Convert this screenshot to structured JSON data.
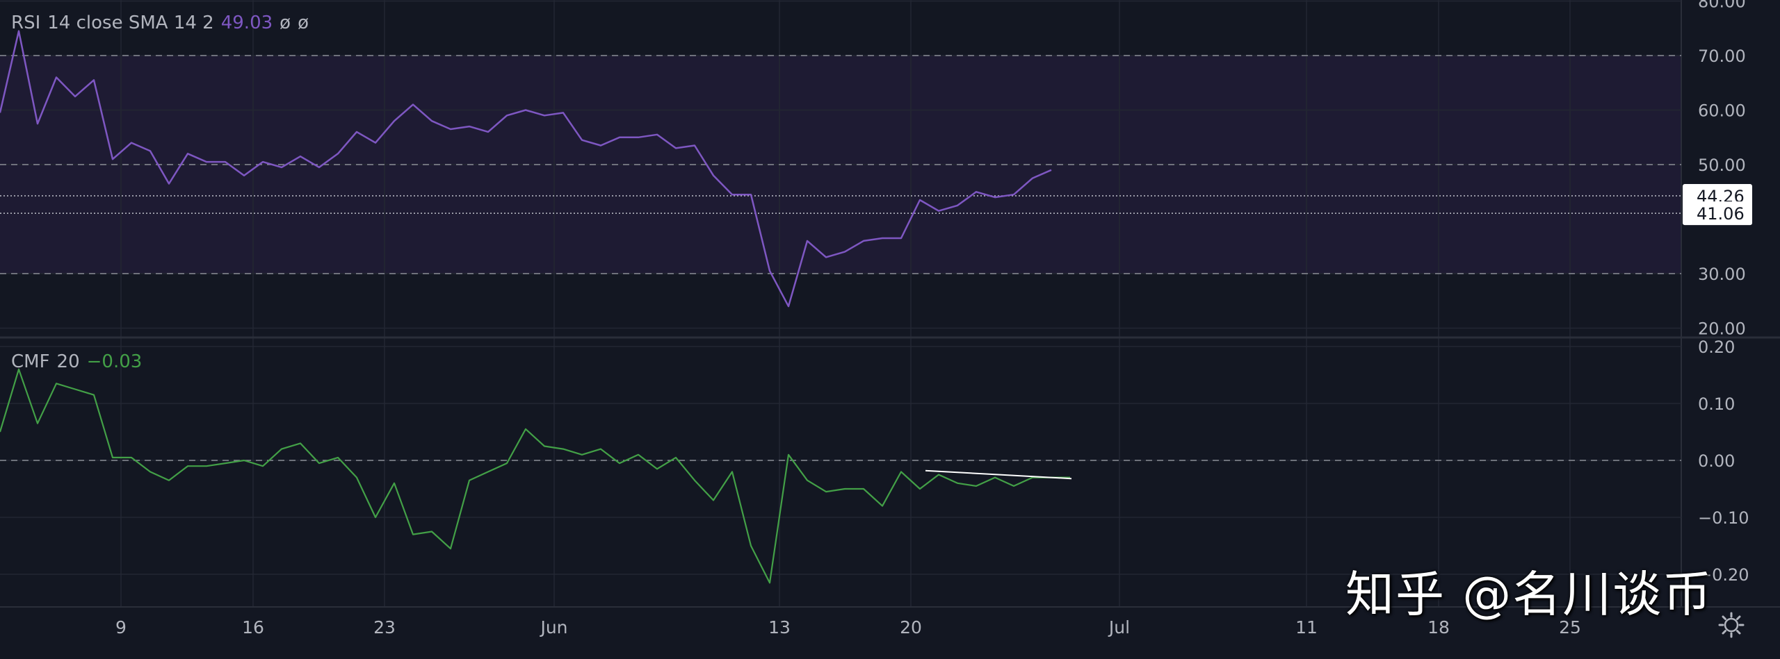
{
  "theme": {
    "background": "#131722",
    "grid": "#232733",
    "band": "#1e1b33",
    "rsi_color": "#7e57c2",
    "cmf_color": "#43a047",
    "text": "#b2b5be",
    "trendline": "#ffffff"
  },
  "rsi_legend": {
    "name": "RSI",
    "params": "14 close SMA 14 2",
    "value": "49.03",
    "na1": "ø",
    "na2": "ø"
  },
  "cmf_legend": {
    "name": "CMF",
    "params": "20",
    "value": "−0.03"
  },
  "price_labels": {
    "rsi_last_a": "44.26",
    "rsi_last_b": "41.06"
  },
  "time_axis": [
    "9",
    "16",
    "23",
    "Jun",
    "13",
    "20",
    "Jul",
    "11",
    "18",
    "25"
  ],
  "watermark": "知乎 @名川谈币",
  "chart_data": [
    {
      "type": "line",
      "title": "RSI 14 close SMA 14 2",
      "ylim": [
        20,
        80
      ],
      "y_ticks": [
        "80.00",
        "70.00",
        "60.00",
        "50.00",
        "30.00",
        "20.00"
      ],
      "bands": [
        70,
        30
      ],
      "dashed_levels": [
        70,
        50,
        30
      ],
      "dotted_levels": [
        44.26,
        41.06
      ],
      "grid": true,
      "series": [
        {
          "name": "RSI",
          "x": [
            0,
            1,
            2,
            3,
            4,
            5,
            6,
            7,
            8,
            9,
            10,
            11,
            12,
            13,
            14,
            15,
            16,
            17,
            18,
            19,
            20,
            21,
            22,
            23,
            24,
            25,
            26,
            27,
            28,
            29,
            30,
            31,
            32,
            33,
            34,
            35,
            36,
            37,
            38,
            39,
            40,
            41,
            42,
            43,
            44,
            45,
            46,
            47,
            48,
            49,
            50,
            51,
            52,
            53,
            54,
            55,
            56
          ],
          "values": [
            59.5,
            74.5,
            57.5,
            66,
            62.5,
            65.5,
            51,
            54,
            52.5,
            46.5,
            52,
            50.5,
            50.5,
            48,
            50.5,
            49.5,
            51.5,
            49.5,
            52,
            56,
            54,
            58,
            61,
            58,
            56.5,
            57,
            56,
            59,
            60,
            59,
            59.5,
            54.5,
            53.5,
            55,
            55,
            55.5,
            53,
            53.5,
            48,
            44.5,
            44.5,
            30.5,
            24,
            36,
            33,
            34,
            36,
            36.5,
            36.5,
            43.5,
            41.5,
            42.5,
            45,
            44,
            44.5,
            47.5,
            49
          ]
        }
      ]
    },
    {
      "type": "line",
      "title": "CMF 20",
      "ylim": [
        -0.255,
        0.2
      ],
      "y_ticks": [
        "0.20",
        "0.10",
        "0.00",
        "−0.10",
        "−0.20"
      ],
      "dashed_levels": [
        0
      ],
      "grid": true,
      "series": [
        {
          "name": "CMF",
          "x": [
            0,
            1,
            2,
            3,
            4,
            5,
            6,
            7,
            8,
            9,
            10,
            11,
            12,
            13,
            14,
            15,
            16,
            17,
            18,
            19,
            20,
            21,
            22,
            23,
            24,
            25,
            26,
            27,
            28,
            29,
            30,
            31,
            32,
            33,
            34,
            35,
            36,
            37,
            38,
            39,
            40,
            41,
            42,
            43,
            44,
            45,
            46,
            47,
            48,
            49,
            50,
            51,
            52,
            53,
            54,
            55,
            56,
            57
          ],
          "values": [
            0.05,
            0.16,
            0.065,
            0.135,
            0.125,
            0.115,
            0.005,
            0.005,
            -0.02,
            -0.035,
            -0.01,
            -0.01,
            -0.005,
            0.0,
            -0.01,
            0.02,
            0.03,
            -0.005,
            0.005,
            -0.03,
            -0.1,
            -0.04,
            -0.13,
            -0.125,
            -0.155,
            -0.035,
            -0.02,
            -0.005,
            0.055,
            0.025,
            0.02,
            0.01,
            0.02,
            -0.005,
            0.01,
            -0.015,
            0.005,
            -0.035,
            -0.07,
            -0.02,
            -0.15,
            -0.215,
            0.01,
            -0.035,
            -0.055,
            -0.05,
            -0.05,
            -0.08,
            -0.02,
            -0.05,
            -0.025,
            -0.04,
            -0.045,
            -0.03,
            -0.045,
            -0.03,
            -0.03,
            -0.03
          ]
        }
      ],
      "trendline": {
        "x": [
          49,
          57
        ],
        "y": [
          -0.018,
          -0.032
        ]
      }
    }
  ]
}
